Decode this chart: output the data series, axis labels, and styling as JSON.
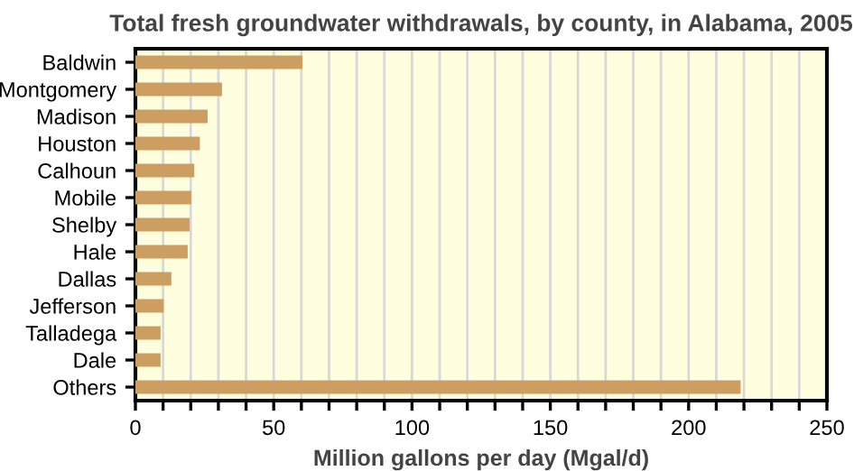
{
  "chart_data": {
    "type": "bar",
    "orientation": "horizontal",
    "title": "Total fresh groundwater withdrawals, by county, in Alabama, 2005",
    "xlabel": "Million gallons per day (Mgal/d)",
    "categories": [
      "Baldwin",
      "Montgomery",
      "Madison",
      "Houston",
      "Calhoun",
      "Mobile",
      "Shelby",
      "Hale",
      "Dallas",
      "Jefferson",
      "Talladega",
      "Dale",
      "Others"
    ],
    "values": [
      60.4,
      31.3,
      26.1,
      23.3,
      21.3,
      20.2,
      19.6,
      18.9,
      13,
      10.2,
      9.1,
      9.1,
      218.8
    ],
    "color": "#cc9e61",
    "xlim": [
      0,
      250
    ],
    "xticks": [
      0,
      {
        "value": 10,
        "label": null
      },
      {
        "value": 20,
        "label": null
      },
      {
        "value": 30,
        "label": null
      },
      {
        "value": 40,
        "label": null
      },
      50,
      {
        "value": 60,
        "label": null
      },
      {
        "value": 70,
        "label": null
      },
      {
        "value": 80,
        "label": null
      },
      {
        "value": 90,
        "label": null
      },
      100,
      {
        "value": 110,
        "label": null
      },
      {
        "value": 120,
        "label": null
      },
      {
        "value": 130,
        "label": null
      },
      {
        "value": 140,
        "label": null
      },
      150,
      {
        "value": 160,
        "label": null
      },
      {
        "value": 170,
        "label": null
      },
      {
        "value": 180,
        "label": null
      },
      {
        "value": 190,
        "label": null
      },
      200,
      {
        "value": 210,
        "label": null
      },
      {
        "value": 220,
        "label": null
      },
      {
        "value": 230,
        "label": null
      },
      {
        "value": 240,
        "label": null
      },
      250
    ],
    "grid": "x",
    "legend": false
  }
}
